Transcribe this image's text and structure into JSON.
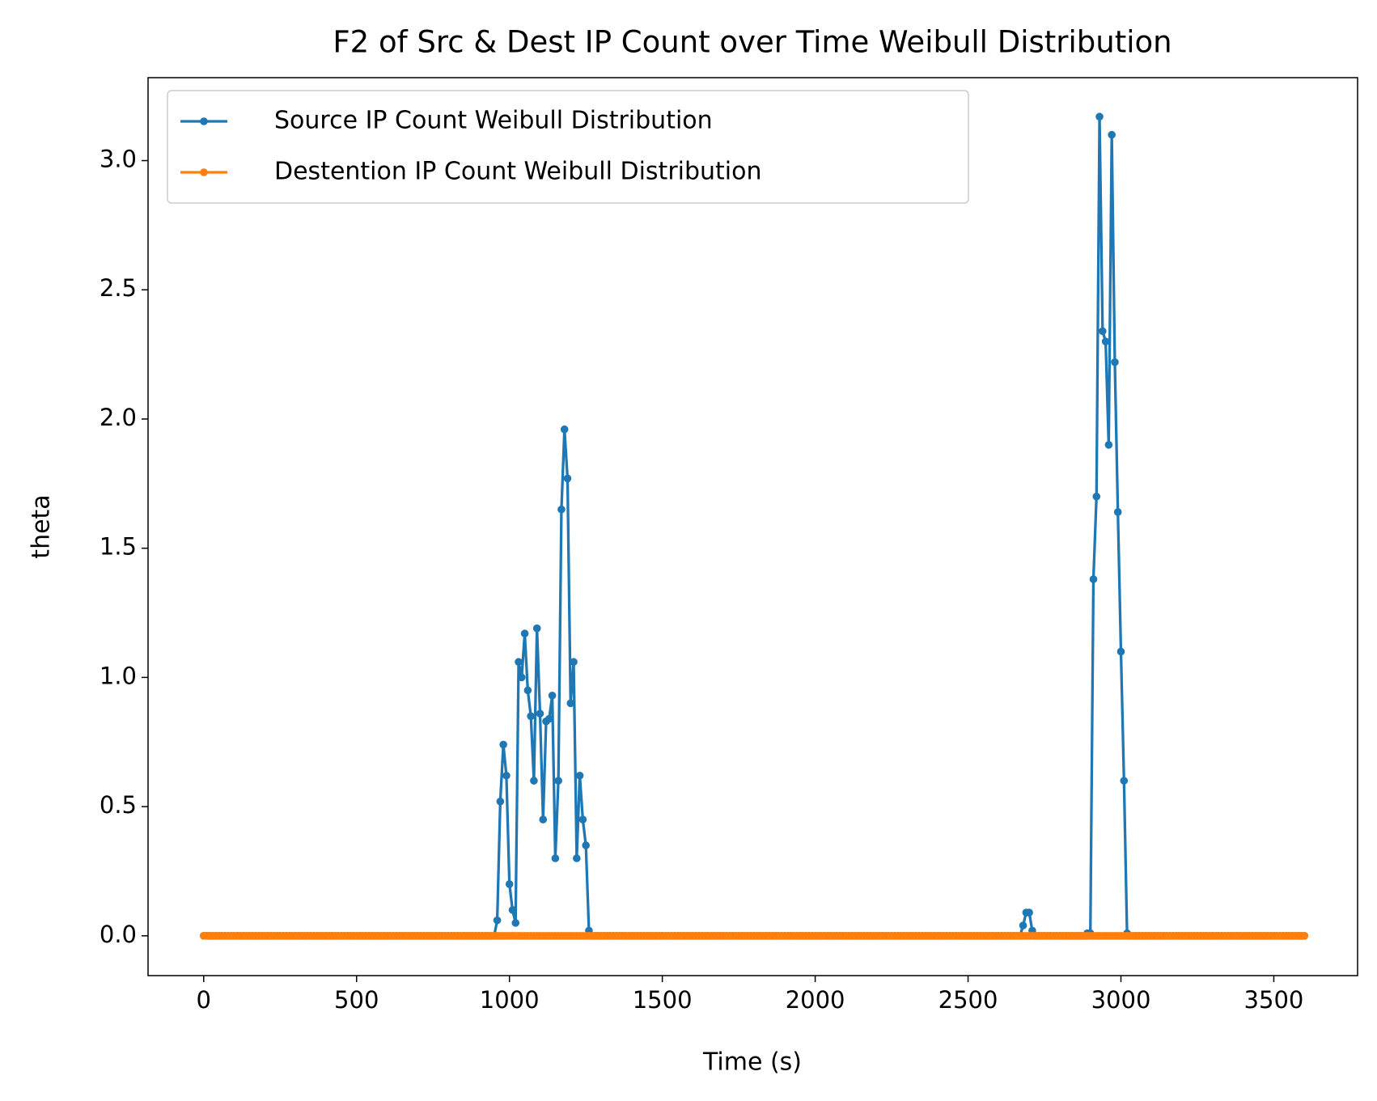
{
  "chart_data": {
    "type": "line",
    "title": "F2 of Src & Dest IP Count over Time Weibull Distribution",
    "x_label": "Time (s)",
    "y_label": "theta",
    "xlim": [
      -182,
      3774
    ],
    "ylim": [
      -0.154,
      3.321
    ],
    "xticks": [
      0,
      500,
      1000,
      1500,
      2000,
      2500,
      3000,
      3500
    ],
    "yticks": [
      {
        "value": 0,
        "label": "0.0"
      },
      0.5,
      {
        "value": 1,
        "label": "1.0"
      },
      1.5,
      {
        "value": 2,
        "label": "2.0"
      },
      2.5,
      {
        "value": 3,
        "label": "3.0"
      }
    ],
    "legend": "upper left",
    "x": [
      0,
      10,
      20,
      30,
      40,
      50,
      60,
      70,
      80,
      90,
      100,
      110,
      120,
      130,
      140,
      150,
      160,
      170,
      180,
      190,
      200,
      210,
      220,
      230,
      240,
      250,
      260,
      270,
      280,
      290,
      300,
      310,
      320,
      330,
      340,
      350,
      360,
      370,
      380,
      390,
      400,
      410,
      420,
      430,
      440,
      450,
      460,
      470,
      480,
      490,
      500,
      510,
      520,
      530,
      540,
      550,
      560,
      570,
      580,
      590,
      600,
      610,
      620,
      630,
      640,
      650,
      660,
      670,
      680,
      690,
      700,
      710,
      720,
      730,
      740,
      750,
      760,
      770,
      780,
      790,
      800,
      810,
      820,
      830,
      840,
      850,
      860,
      870,
      880,
      890,
      900,
      910,
      920,
      930,
      940,
      950,
      960,
      970,
      980,
      990,
      1000,
      1010,
      1020,
      1030,
      1040,
      1050,
      1060,
      1070,
      1080,
      1090,
      1100,
      1110,
      1120,
      1130,
      1140,
      1150,
      1160,
      1170,
      1180,
      1190,
      1200,
      1210,
      1220,
      1230,
      1240,
      1250,
      1260,
      1270,
      1280,
      1290,
      1300,
      1310,
      1320,
      1330,
      1340,
      1350,
      1360,
      1370,
      1380,
      1390,
      1400,
      1410,
      1420,
      1430,
      1440,
      1450,
      1460,
      1470,
      1480,
      1490,
      1500,
      1510,
      1520,
      1530,
      1540,
      1550,
      1560,
      1570,
      1580,
      1590,
      1600,
      1610,
      1620,
      1630,
      1640,
      1650,
      1660,
      1670,
      1680,
      1690,
      1700,
      1710,
      1720,
      1730,
      1740,
      1750,
      1760,
      1770,
      1780,
      1790,
      1800,
      1810,
      1820,
      1830,
      1840,
      1850,
      1860,
      1870,
      1880,
      1890,
      1900,
      1910,
      1920,
      1930,
      1940,
      1950,
      1960,
      1970,
      1980,
      1990,
      2000,
      2010,
      2020,
      2030,
      2040,
      2050,
      2060,
      2070,
      2080,
      2090,
      2100,
      2110,
      2120,
      2130,
      2140,
      2150,
      2160,
      2170,
      2180,
      2190,
      2200,
      2210,
      2220,
      2230,
      2240,
      2250,
      2260,
      2270,
      2280,
      2290,
      2300,
      2310,
      2320,
      2330,
      2340,
      2350,
      2360,
      2370,
      2380,
      2390,
      2400,
      2410,
      2420,
      2430,
      2440,
      2450,
      2460,
      2470,
      2480,
      2490,
      2500,
      2510,
      2520,
      2530,
      2540,
      2550,
      2560,
      2570,
      2580,
      2590,
      2600,
      2610,
      2620,
      2630,
      2640,
      2650,
      2660,
      2670,
      2680,
      2690,
      2700,
      2710,
      2720,
      2730,
      2740,
      2750,
      2760,
      2770,
      2780,
      2790,
      2800,
      2810,
      2820,
      2830,
      2840,
      2850,
      2860,
      2870,
      2880,
      2890,
      2900,
      2910,
      2920,
      2930,
      2940,
      2950,
      2960,
      2970,
      2980,
      2990,
      3000,
      3010,
      3020,
      3030,
      3040,
      3050,
      3060,
      3070,
      3080,
      3090,
      3100,
      3110,
      3120,
      3130,
      3140,
      3150,
      3160,
      3170,
      3180,
      3190,
      3200,
      3210,
      3220,
      3230,
      3240,
      3250,
      3260,
      3270,
      3280,
      3290,
      3300,
      3310,
      3320,
      3330,
      3340,
      3350,
      3360,
      3370,
      3380,
      3390,
      3400,
      3410,
      3420,
      3430,
      3440,
      3450,
      3460,
      3470,
      3480,
      3490,
      3500,
      3510,
      3520,
      3530,
      3540,
      3550,
      3560,
      3570,
      3580,
      3590,
      3600
    ],
    "series": [
      {
        "name": "Source IP Count Weibull Distribution",
        "color": "#1f77b4",
        "values": [
          0,
          0,
          0,
          0,
          0,
          0,
          0,
          0,
          0,
          0,
          0,
          0,
          0,
          0,
          0,
          0,
          0,
          0,
          0,
          0,
          0,
          0,
          0,
          0,
          0,
          0,
          0,
          0,
          0,
          0,
          0,
          0,
          0,
          0,
          0,
          0,
          0,
          0,
          0,
          0,
          0,
          0,
          0,
          0,
          0,
          0,
          0,
          0,
          0,
          0,
          0,
          0,
          0,
          0,
          0,
          0,
          0,
          0,
          0,
          0,
          0,
          0,
          0,
          0,
          0,
          0,
          0,
          0,
          0,
          0,
          0,
          0,
          0,
          0,
          0,
          0,
          0,
          0,
          0,
          0,
          0,
          0,
          0,
          0,
          0,
          0,
          0,
          0,
          0,
          0,
          0,
          0,
          0,
          0,
          0,
          0,
          0.06,
          0.52,
          0.74,
          0.62,
          0.2,
          0.1,
          0.05,
          1.06,
          1.0,
          1.17,
          0.95,
          0.85,
          0.6,
          1.19,
          0.86,
          0.45,
          0.83,
          0.84,
          0.93,
          0.3,
          0.6,
          1.65,
          1.96,
          1.77,
          0.9,
          1.06,
          0.3,
          0.62,
          0.45,
          0.35,
          0.02,
          0,
          0,
          0,
          0,
          0,
          0,
          0,
          0,
          0,
          0,
          0,
          0,
          0,
          0,
          0,
          0,
          0,
          0,
          0,
          0,
          0,
          0,
          0,
          0,
          0,
          0,
          0,
          0,
          0,
          0,
          0,
          0,
          0,
          0,
          0,
          0,
          0,
          0,
          0,
          0,
          0,
          0,
          0,
          0,
          0,
          0,
          0,
          0,
          0,
          0,
          0,
          0,
          0,
          0,
          0,
          0,
          0,
          0,
          0,
          0,
          0,
          0,
          0,
          0,
          0,
          0,
          0,
          0,
          0,
          0,
          0,
          0,
          0,
          0,
          0,
          0,
          0,
          0,
          0,
          0,
          0,
          0,
          0,
          0,
          0,
          0,
          0,
          0,
          0,
          0,
          0,
          0,
          0,
          0,
          0,
          0,
          0,
          0,
          0,
          0,
          0,
          0,
          0,
          0,
          0,
          0,
          0,
          0,
          0,
          0,
          0,
          0,
          0,
          0,
          0,
          0,
          0,
          0,
          0,
          0,
          0,
          0,
          0,
          0,
          0,
          0,
          0,
          0,
          0,
          0,
          0,
          0,
          0,
          0,
          0,
          0,
          0,
          0,
          0,
          0,
          0,
          0.04,
          0.09,
          0.09,
          0.02,
          0,
          0,
          0,
          0,
          0,
          0,
          0,
          0,
          0,
          0,
          0,
          0,
          0,
          0,
          0,
          0,
          0,
          0.01,
          0.01,
          1.38,
          1.7,
          3.17,
          2.34,
          2.3,
          1.9,
          3.1,
          2.22,
          1.64,
          1.1,
          0.6,
          0.01,
          0,
          0,
          0,
          0,
          0,
          0,
          0,
          0,
          0,
          0,
          0,
          0,
          0,
          0,
          0,
          0,
          0,
          0,
          0,
          0,
          0,
          0,
          0,
          0,
          0,
          0,
          0,
          0,
          0,
          0,
          0,
          0,
          0,
          0,
          0,
          0,
          0,
          0,
          0,
          0,
          0,
          0,
          0,
          0,
          0,
          0,
          0,
          0,
          0,
          0,
          0,
          0,
          0,
          0,
          0,
          0,
          0,
          0
        ]
      },
      {
        "name": "Destention IP Count Weibull Distribution",
        "color": "#ff7f0e",
        "values": [
          0,
          0,
          0,
          0,
          0,
          0,
          0,
          0,
          0,
          0,
          0,
          0,
          0,
          0,
          0,
          0,
          0,
          0,
          0,
          0,
          0,
          0,
          0,
          0,
          0,
          0,
          0,
          0,
          0,
          0,
          0,
          0,
          0,
          0,
          0,
          0,
          0,
          0,
          0,
          0,
          0,
          0,
          0,
          0,
          0,
          0,
          0,
          0,
          0,
          0,
          0,
          0,
          0,
          0,
          0,
          0,
          0,
          0,
          0,
          0,
          0,
          0,
          0,
          0,
          0,
          0,
          0,
          0,
          0,
          0,
          0,
          0,
          0,
          0,
          0,
          0,
          0,
          0,
          0,
          0,
          0,
          0,
          0,
          0,
          0,
          0,
          0,
          0,
          0,
          0,
          0,
          0,
          0,
          0,
          0,
          0,
          0,
          0,
          0,
          0,
          0,
          0,
          0,
          0,
          0,
          0,
          0,
          0,
          0,
          0,
          0,
          0,
          0,
          0,
          0,
          0,
          0,
          0,
          0,
          0,
          0,
          0,
          0,
          0,
          0,
          0,
          0,
          0,
          0,
          0,
          0,
          0,
          0,
          0,
          0,
          0,
          0,
          0,
          0,
          0,
          0,
          0,
          0,
          0,
          0,
          0,
          0,
          0,
          0,
          0,
          0,
          0,
          0,
          0,
          0,
          0,
          0,
          0,
          0,
          0,
          0,
          0,
          0,
          0,
          0,
          0,
          0,
          0,
          0,
          0,
          0,
          0,
          0,
          0,
          0,
          0,
          0,
          0,
          0,
          0,
          0,
          0,
          0,
          0,
          0,
          0,
          0,
          0,
          0,
          0,
          0,
          0,
          0,
          0,
          0,
          0,
          0,
          0,
          0,
          0,
          0,
          0,
          0,
          0,
          0,
          0,
          0,
          0,
          0,
          0,
          0,
          0,
          0,
          0,
          0,
          0,
          0,
          0,
          0,
          0,
          0,
          0,
          0,
          0,
          0,
          0,
          0,
          0,
          0,
          0,
          0,
          0,
          0,
          0,
          0,
          0,
          0,
          0,
          0,
          0,
          0,
          0,
          0,
          0,
          0,
          0,
          0,
          0,
          0,
          0,
          0,
          0,
          0,
          0,
          0,
          0,
          0,
          0,
          0,
          0,
          0,
          0,
          0,
          0,
          0,
          0,
          0,
          0,
          0,
          0,
          0,
          0,
          0,
          0,
          0,
          0,
          0,
          0,
          0,
          0,
          0,
          0,
          0,
          0,
          0,
          0,
          0,
          0,
          0,
          0,
          0,
          0,
          0,
          0,
          0,
          0,
          0,
          0,
          0,
          0,
          0,
          0,
          0,
          0,
          0,
          0,
          0,
          0,
          0,
          0,
          0,
          0,
          0,
          0,
          0,
          0,
          0,
          0,
          0,
          0,
          0,
          0,
          0,
          0,
          0,
          0,
          0,
          0,
          0,
          0,
          0,
          0,
          0,
          0,
          0,
          0,
          0,
          0,
          0,
          0,
          0,
          0,
          0,
          0,
          0,
          0,
          0,
          0,
          0,
          0,
          0,
          0,
          0,
          0,
          0,
          0,
          0,
          0,
          0,
          0,
          0
        ]
      }
    ]
  }
}
